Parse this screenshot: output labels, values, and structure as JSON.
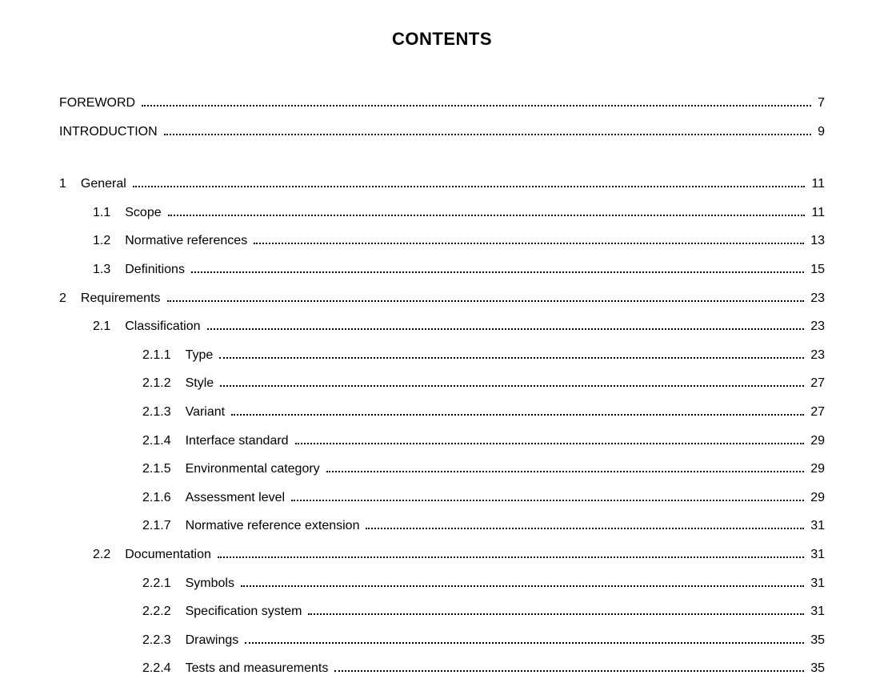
{
  "title": "CONTENTS",
  "entries": [
    {
      "num": "",
      "label": "FOREWORD",
      "page": "7",
      "indent": 0
    },
    {
      "num": "",
      "label": "INTRODUCTION",
      "page": "9",
      "indent": 0,
      "gapAfter": true
    },
    {
      "num": "1",
      "label": "General",
      "page": "11",
      "indent": 0
    },
    {
      "num": "1.1",
      "label": "Scope",
      "page": "11",
      "indent": 1
    },
    {
      "num": "1.2",
      "label": "Normative references",
      "page": "13",
      "indent": 1
    },
    {
      "num": "1.3",
      "label": "Definitions",
      "page": "15",
      "indent": 1
    },
    {
      "num": "2",
      "label": "Requirements",
      "page": "23",
      "indent": 0
    },
    {
      "num": "2.1",
      "label": "Classification",
      "page": "23",
      "indent": 1
    },
    {
      "num": "2.1.1",
      "label": "Type",
      "page": "23",
      "indent": 2
    },
    {
      "num": "2.1.2",
      "label": "Style",
      "page": "27",
      "indent": 2
    },
    {
      "num": "2.1.3",
      "label": "Variant",
      "page": "27",
      "indent": 2
    },
    {
      "num": "2.1.4",
      "label": "Interface standard",
      "page": "29",
      "indent": 2
    },
    {
      "num": "2.1.5",
      "label": "Environmental category",
      "page": "29",
      "indent": 2
    },
    {
      "num": "2.1.6",
      "label": "Assessment level",
      "page": "29",
      "indent": 2
    },
    {
      "num": "2.1.7",
      "label": "Normative reference extension",
      "page": "31",
      "indent": 2
    },
    {
      "num": "2.2",
      "label": "Documentation",
      "page": "31",
      "indent": 1
    },
    {
      "num": "2.2.1",
      "label": "Symbols",
      "page": "31",
      "indent": 2
    },
    {
      "num": "2.2.2",
      "label": "Specification system",
      "page": "31",
      "indent": 2
    },
    {
      "num": "2.2.3",
      "label": "Drawings",
      "page": "35",
      "indent": 2
    },
    {
      "num": "2.2.4",
      "label": "Tests and measurements",
      "page": "35",
      "indent": 2
    }
  ]
}
